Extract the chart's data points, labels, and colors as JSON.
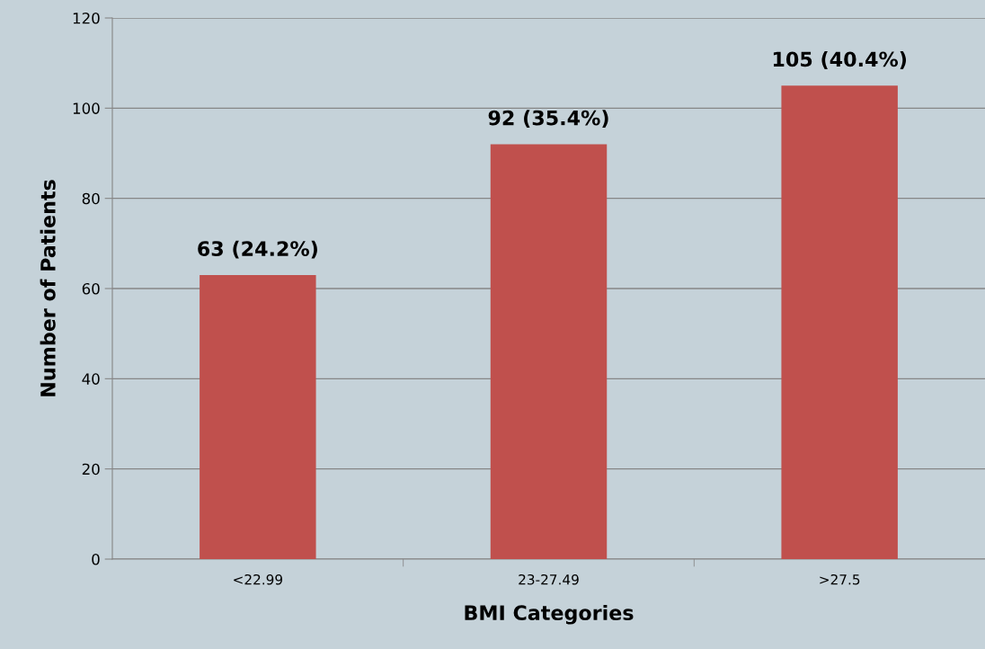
{
  "chart_data": {
    "type": "bar",
    "xlabel": "BMI Categories",
    "ylabel": "Number of Patients",
    "categories": [
      "<22.99",
      "23-27.49",
      ">27.5"
    ],
    "values": [
      63,
      92,
      105
    ],
    "color": "#c0504d",
    "value_labels": [
      "63 (24.2%)",
      "92 (35.4%)",
      "105 (40.4%)"
    ],
    "ylim": [
      0,
      120
    ],
    "yticks": [
      0,
      20,
      40,
      60,
      80,
      100,
      120
    ],
    "grid": "y"
  }
}
